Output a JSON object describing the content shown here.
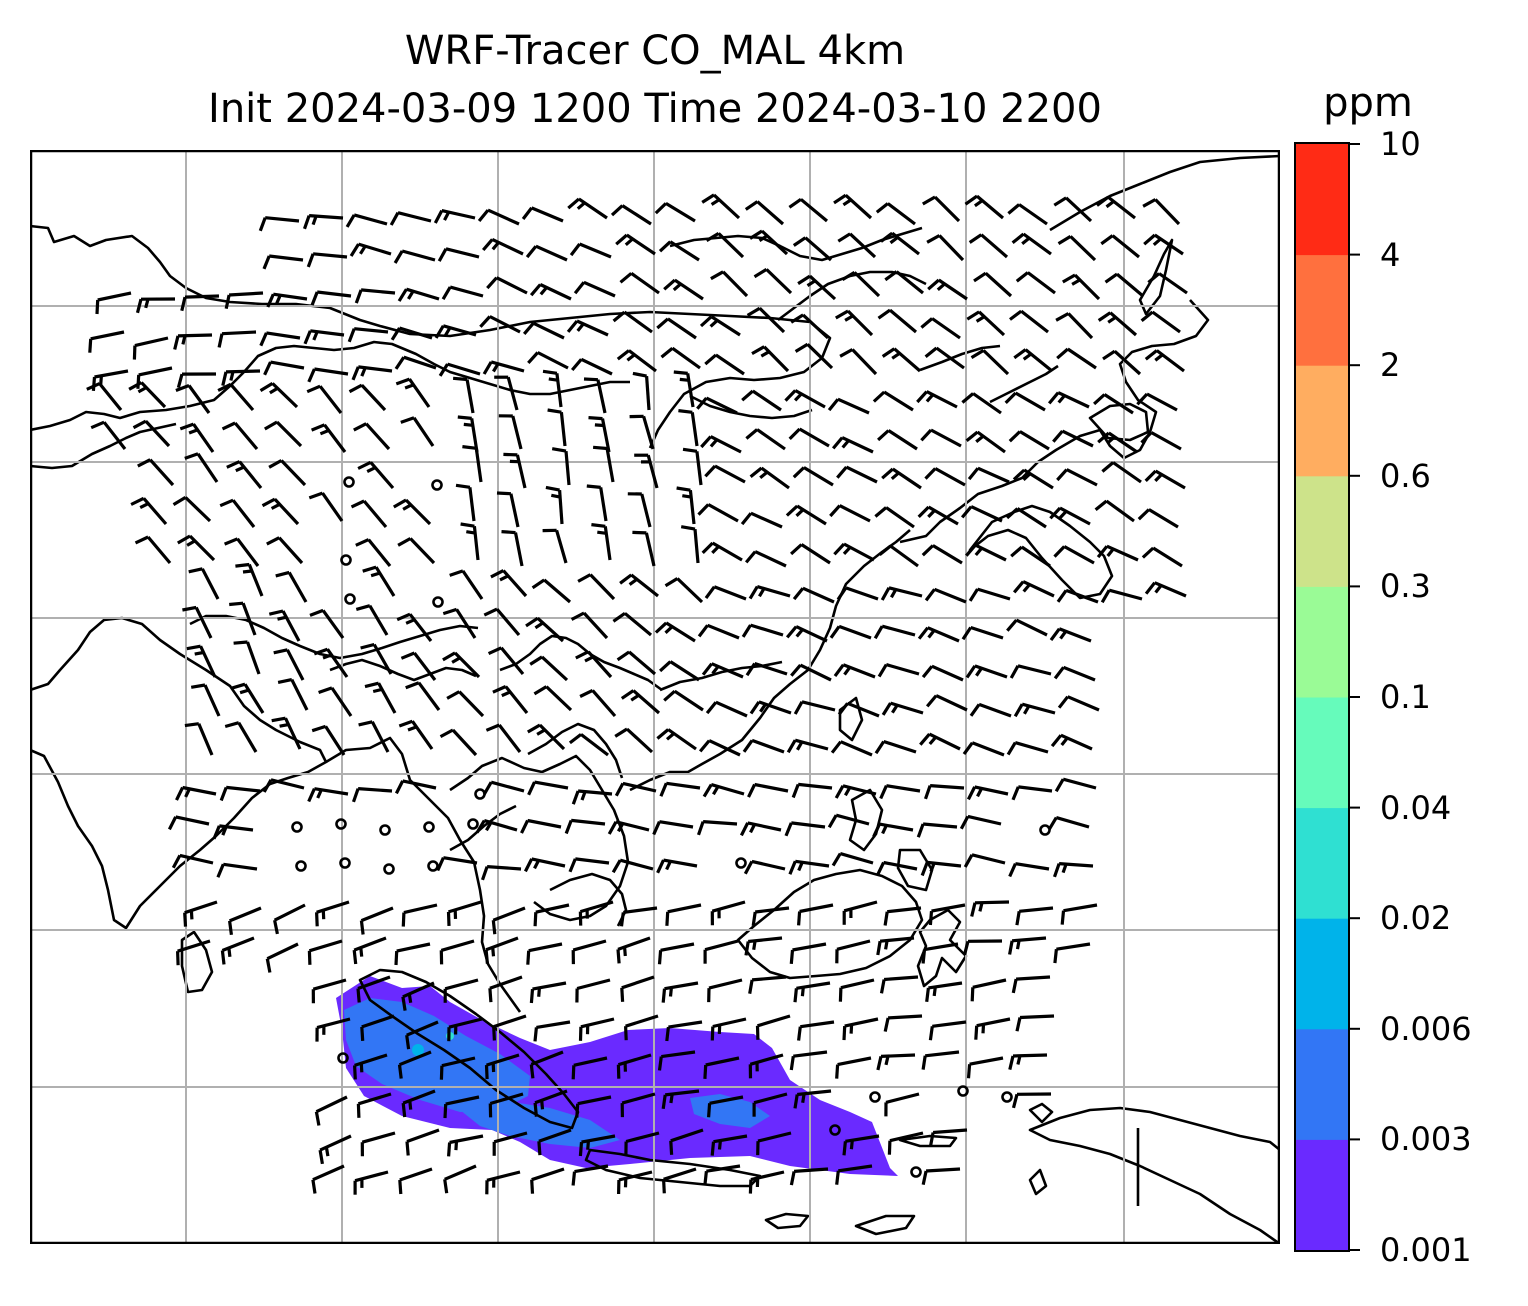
{
  "title": {
    "line1": "WRF-Tracer CO_MAL 4km",
    "line2": "Init 2024-03-09 1200 Time 2024-03-10 2200"
  },
  "colorbar": {
    "unit": "ppm",
    "tick_labels": [
      "0.001",
      "0.003",
      "0.006",
      "0.02",
      "0.04",
      "0.1",
      "0.3",
      "0.6",
      "2",
      "4",
      "10"
    ],
    "colors": [
      "#6a2aff",
      "#3276f5",
      "#00b3ea",
      "#2fe0d2",
      "#66fbbb",
      "#9afb96",
      "#cde38a",
      "#ffad60",
      "#ff703e",
      "#ff2b15"
    ]
  },
  "map": {
    "region": "South and Southeast Asia, East Asia",
    "variable": "CO_MAL tracer",
    "overlay": "wind barbs",
    "gridlines": true
  },
  "colors": {
    "plume_low": "#6a2aff",
    "plume_mid": "#3276f5",
    "plume_high": "#00b3ea",
    "coastline": "#000000",
    "grid": "#b0b0b0"
  }
}
